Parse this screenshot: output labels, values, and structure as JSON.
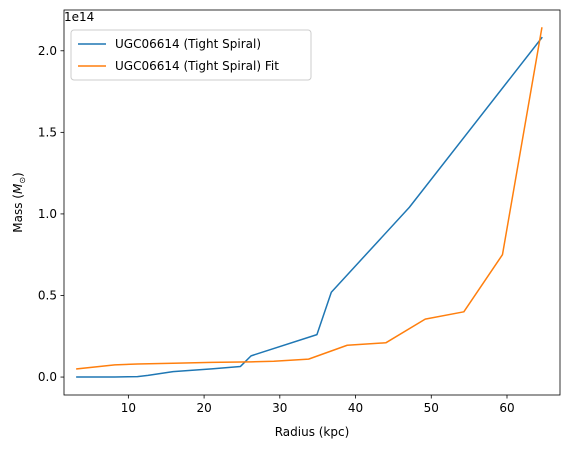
{
  "chart_data": {
    "type": "line",
    "title": "",
    "xlabel": "Radius (kpc)",
    "ylabel_prefix": "Mass (",
    "ylabel_symbol": "M",
    "ylabel_subscript": "⊙",
    "ylabel_suffix": ")",
    "y_offset_text": "1e14",
    "xlim": [
      1.5,
      67.0
    ],
    "ylim": [
      -0.11,
      2.25
    ],
    "y_scale_factor": 100000000000000.0,
    "x_ticks": [
      10,
      20,
      30,
      40,
      50,
      60
    ],
    "x_tick_labels": [
      "10",
      "20",
      "30",
      "40",
      "50",
      "60"
    ],
    "y_ticks": [
      0.0,
      0.5,
      1.0,
      1.5,
      2.0
    ],
    "y_tick_labels": [
      "0.0",
      "0.5",
      "1.0",
      "1.5",
      "2.0"
    ],
    "grid": false,
    "legend_position": "top-left",
    "series": [
      {
        "name": "UGC06614 (Tight Spiral)",
        "color": "#1f77b4",
        "x": [
          3.2,
          8.2,
          11.2,
          12.6,
          15.9,
          21.0,
          24.8,
          26.2,
          34.9,
          36.8,
          47.1,
          64.6
        ],
        "y": [
          0.0,
          0.0,
          0.003,
          0.01,
          0.033,
          0.05,
          0.065,
          0.13,
          0.26,
          0.52,
          1.04,
          2.08
        ]
      },
      {
        "name": "UGC06614 (Tight Spiral) Fit",
        "color": "#ff7f0e",
        "x": [
          3.2,
          8.2,
          11.2,
          15.9,
          21.0,
          26.2,
          29.2,
          33.8,
          38.9,
          44.0,
          49.2,
          54.3,
          59.4,
          64.6
        ],
        "y": [
          0.05,
          0.075,
          0.08,
          0.085,
          0.09,
          0.093,
          0.097,
          0.11,
          0.195,
          0.21,
          0.355,
          0.4,
          0.75,
          2.14
        ]
      }
    ]
  }
}
